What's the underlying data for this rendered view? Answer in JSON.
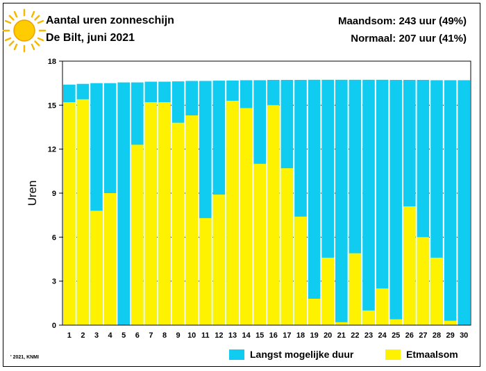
{
  "header": {
    "title": "Aantal uren zonneschijn",
    "subtitle": "De Bilt, juni 2021",
    "month_sum": "Maandsom: 243 uur (49%)",
    "normal": "Normaal: 207 uur (41%)",
    "icon": "sun-icon"
  },
  "footer": {
    "copyright": "' 2021, KNMI"
  },
  "chart_data": {
    "type": "bar",
    "ylabel": "Uren",
    "xlabel": "",
    "ylim": [
      0,
      18
    ],
    "yticks": [
      0,
      3,
      6,
      9,
      12,
      15,
      18
    ],
    "categories": [
      "1",
      "2",
      "3",
      "4",
      "5",
      "6",
      "7",
      "8",
      "9",
      "10",
      "11",
      "12",
      "13",
      "14",
      "15",
      "16",
      "17",
      "18",
      "19",
      "20",
      "21",
      "22",
      "23",
      "24",
      "25",
      "26",
      "27",
      "28",
      "29",
      "30"
    ],
    "series": [
      {
        "name": "Langst mogelijke duur",
        "color": "#10ccf0",
        "values": [
          16.4,
          16.45,
          16.5,
          16.5,
          16.55,
          16.55,
          16.6,
          16.6,
          16.62,
          16.65,
          16.65,
          16.67,
          16.68,
          16.7,
          16.7,
          16.72,
          16.72,
          16.72,
          16.73,
          16.73,
          16.73,
          16.73,
          16.73,
          16.73,
          16.72,
          16.72,
          16.72,
          16.7,
          16.7,
          16.7
        ]
      },
      {
        "name": "Etmaalsom",
        "color": "#fff200",
        "values": [
          15.2,
          15.4,
          7.8,
          9.0,
          0.0,
          12.3,
          15.2,
          15.2,
          13.8,
          14.3,
          7.3,
          8.9,
          15.3,
          14.8,
          11.0,
          15.0,
          10.7,
          7.4,
          1.8,
          4.6,
          0.2,
          4.9,
          1.0,
          2.5,
          0.4,
          8.1,
          6.0,
          4.6,
          0.3,
          0.0
        ]
      }
    ],
    "grid": true,
    "legend_position": "bottom-right"
  }
}
